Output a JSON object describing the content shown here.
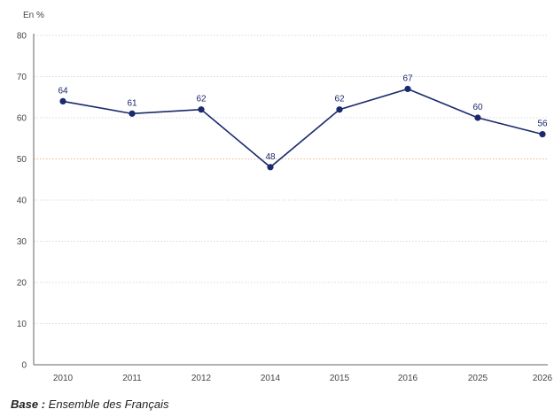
{
  "chart_data": {
    "type": "line",
    "unit_label": "En %",
    "categories": [
      "2010",
      "2011",
      "2012",
      "2014",
      "2015",
      "2016",
      "2025",
      "2026"
    ],
    "values": [
      64,
      61,
      62,
      48,
      62,
      67,
      60,
      56
    ],
    "data_labels": [
      "64",
      "61",
      "62",
      "48",
      "62",
      "67",
      "60",
      "56"
    ],
    "y_ticks": [
      "0",
      "10",
      "20",
      "30",
      "40",
      "50",
      "60",
      "70",
      "80"
    ],
    "ylim": [
      0,
      80
    ],
    "reference_line": 50,
    "grid": true,
    "colors": {
      "line": "#1a2a6c",
      "grid": "#d9d9d9",
      "reference": "#f0b090",
      "axis": "#666666"
    }
  },
  "footnote": {
    "label": "Base :",
    "text": " Ensemble des Français"
  }
}
